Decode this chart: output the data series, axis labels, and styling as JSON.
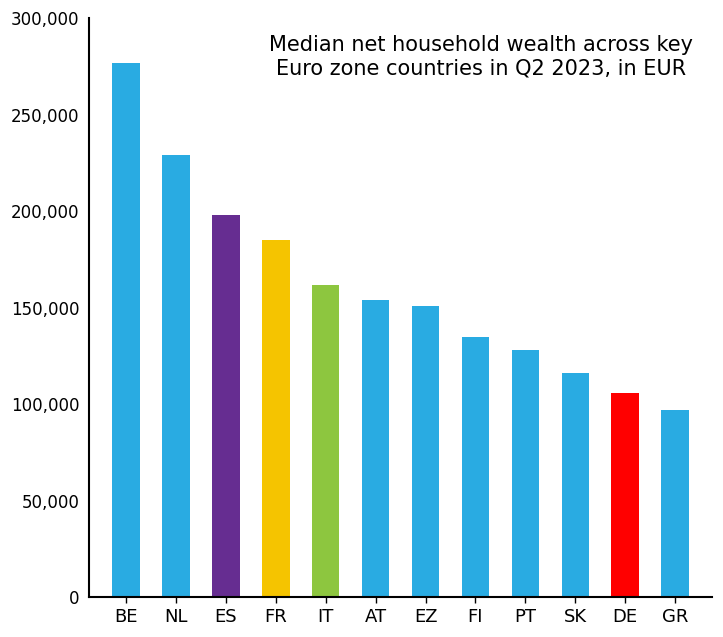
{
  "categories": [
    "BE",
    "NL",
    "ES",
    "FR",
    "IT",
    "AT",
    "EZ",
    "FI",
    "PT",
    "SK",
    "DE",
    "GR"
  ],
  "values": [
    277000,
    229000,
    198000,
    185000,
    162000,
    154000,
    151000,
    135000,
    128000,
    116000,
    106000,
    97000
  ],
  "colors": [
    "#29ABE2",
    "#29ABE2",
    "#662D91",
    "#F5C400",
    "#8DC63F",
    "#29ABE2",
    "#29ABE2",
    "#29ABE2",
    "#29ABE2",
    "#29ABE2",
    "#FF0000",
    "#29ABE2"
  ],
  "title": "Median net household wealth across key\nEuro zone countries in Q2 2023, in EUR",
  "title_fontsize": 15,
  "ylim": [
    0,
    300000
  ],
  "yticks": [
    0,
    50000,
    100000,
    150000,
    200000,
    250000,
    300000
  ],
  "background_color": "#ffffff",
  "bar_width": 0.55
}
